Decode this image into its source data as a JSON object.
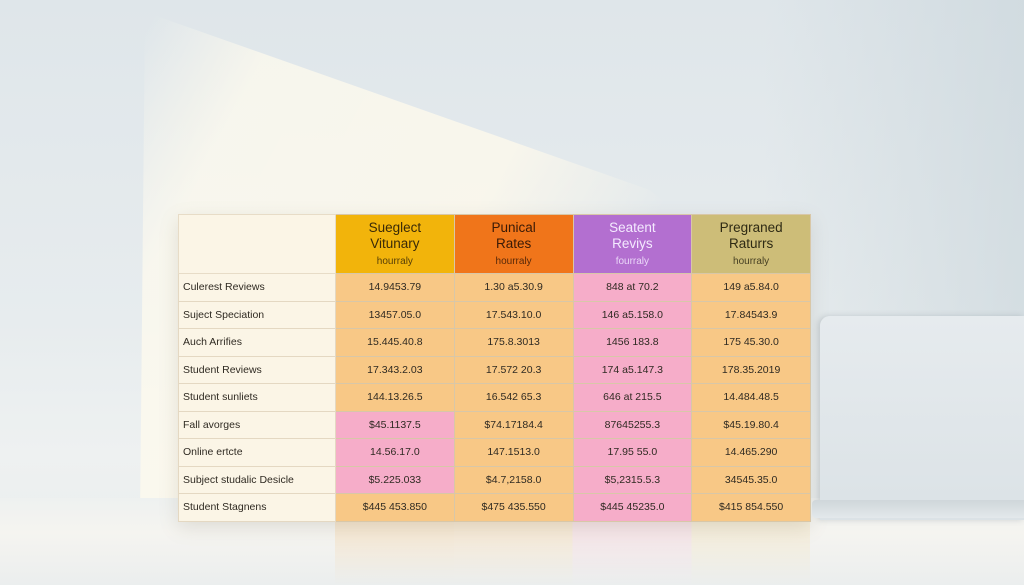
{
  "table": {
    "headers": [
      {
        "line1": "Sueglect",
        "line2": "Vitunary",
        "sub": "hourraly"
      },
      {
        "line1": "Punical",
        "line2": "Rates",
        "sub": "hourraly"
      },
      {
        "line1": "Seatent",
        "line2": "Reviys",
        "sub": "fourraly"
      },
      {
        "line1": "Pregraned",
        "line2": "Raturrs",
        "sub": "hourraly"
      }
    ],
    "rows": [
      {
        "label": "Culerest Reviews",
        "values": [
          "14.9453.79",
          "1.30 a5.30.9",
          "848 at 70.2",
          "149 a5.84.0"
        ]
      },
      {
        "label": "Suject Speciation",
        "values": [
          "13457.05.0",
          "17.543.10.0",
          "146 a5.158.0",
          "17.84543.9"
        ]
      },
      {
        "label": "Auch Arrifies",
        "values": [
          "15.445.40.8",
          "175.8.3013",
          "1456 183.8",
          "175 45.30.0"
        ]
      },
      {
        "label": "Student Reviews",
        "values": [
          "17.343.2.03",
          "17.572 20.3",
          "174 a5.147.3",
          "178.35.2019"
        ]
      },
      {
        "label": "Student sunliets",
        "values": [
          "144.13.26.5",
          "16.542 65.3",
          "646 at 215.5",
          "14.484.48.5"
        ]
      },
      {
        "label": "Fall avorges",
        "values": [
          "$45.1137.5",
          "$74.17184.4",
          "87645255.3",
          "$45.19.80.4"
        ]
      },
      {
        "label": "Online ertcte",
        "values": [
          "14.56.17.0",
          "147.1513.0",
          "17.95 55.0",
          "14.465.290"
        ]
      },
      {
        "label": "Subject studalic Desicle",
        "values": [
          "$5.225.033",
          "$4.7,2158.0",
          "$5,2315.5.3",
          "34545.35.0"
        ]
      },
      {
        "label": "Student Stagnens",
        "values": [
          "$445 453.850",
          "$475 435.550",
          "$445 45235.0",
          "$415 854.550"
        ]
      }
    ]
  },
  "colors": {
    "header1": "#f2b40b",
    "header2": "#f0751a",
    "header3": "#b36fd0",
    "header4": "#cdbd78",
    "cell_orange": "#f8c886",
    "cell_pink": "#f6adc9",
    "label_bg": "#fbf5e6"
  }
}
